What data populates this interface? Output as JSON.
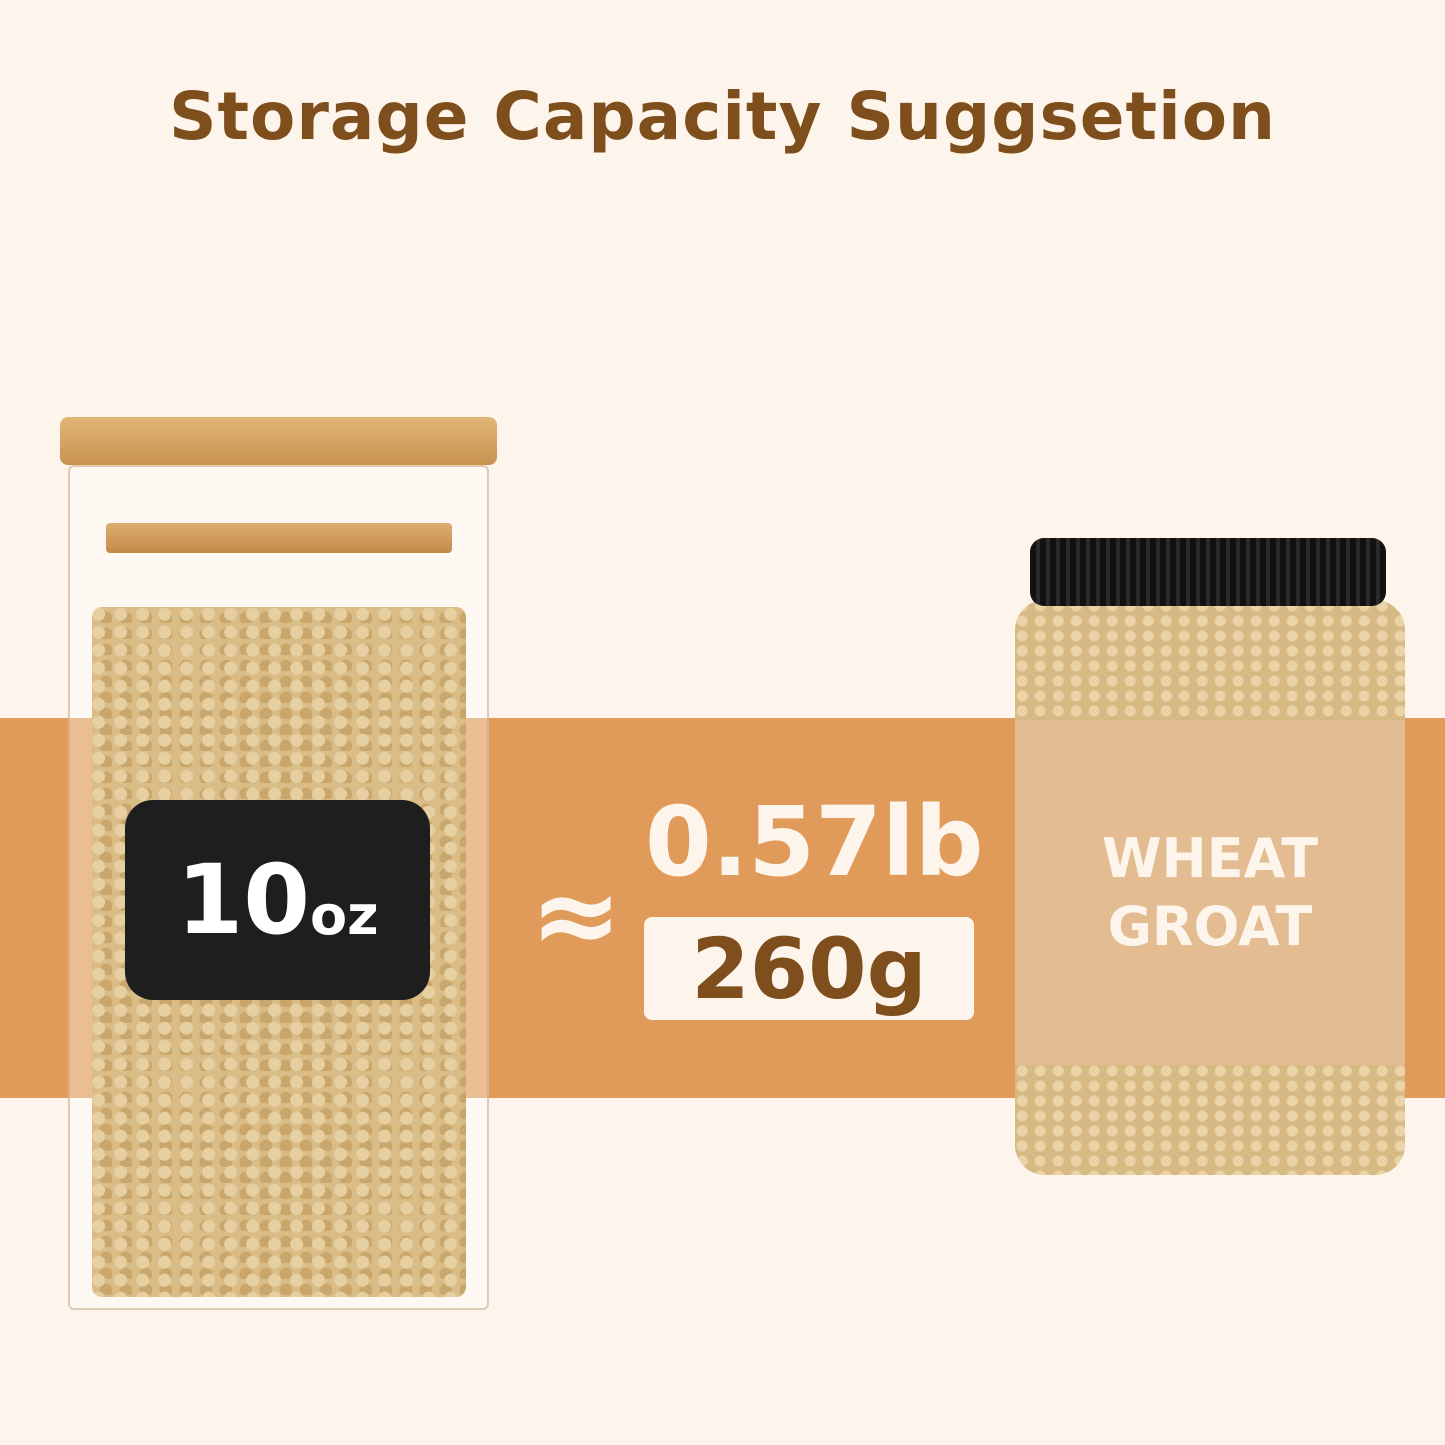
{
  "title": "Storage Capacity Suggsetion",
  "jar_label": {
    "number": "10",
    "unit": "oz"
  },
  "approx_symbol": "≈",
  "weight_lb": "0.57lb",
  "weight_g": "260g",
  "product_label": {
    "line1": "WHEAT",
    "line2": "GROAT"
  },
  "colors": {
    "background": "#FDF5EC",
    "band": "#E09A5A",
    "title": "#7E4E1C",
    "label": "#E3BD91"
  }
}
